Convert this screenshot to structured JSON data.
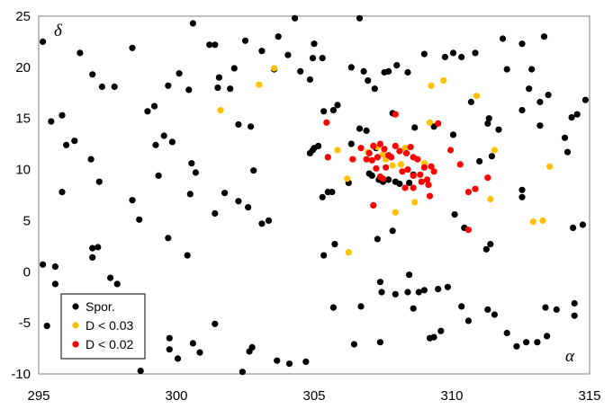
{
  "chart_data": {
    "type": "scatter",
    "xlabel": "α",
    "ylabel": "δ",
    "xlim": [
      295,
      315
    ],
    "ylim": [
      -10,
      25
    ],
    "xticks": [
      "295",
      "300",
      "305",
      "310",
      "315"
    ],
    "yticks": [
      "-10",
      "-5",
      "0",
      "5",
      "10",
      "15",
      "20",
      "25"
    ],
    "grid": false,
    "legend_position": "bottom-left",
    "series": [
      {
        "name": "Spor.",
        "color": "#000000",
        "points": [
          [
            295.15,
            22.5
          ],
          [
            295.45,
            14.7
          ],
          [
            295.85,
            15.3
          ],
          [
            296.0,
            12.4
          ],
          [
            296.3,
            12.8
          ],
          [
            296.5,
            21.4
          ],
          [
            296.95,
            19.3
          ],
          [
            297.3,
            18.1
          ],
          [
            297.75,
            18.1
          ],
          [
            298.4,
            21.9
          ],
          [
            298.95,
            15.7
          ],
          [
            299.2,
            16.2
          ],
          [
            299.55,
            13.3
          ],
          [
            299.25,
            12.4
          ],
          [
            299.85,
            12.7
          ],
          [
            299.7,
            18.2
          ],
          [
            300.1,
            19.4
          ],
          [
            300.45,
            17.8
          ],
          [
            300.6,
            24.3
          ],
          [
            301.2,
            22.2
          ],
          [
            301.4,
            22.2
          ],
          [
            301.55,
            19.0
          ],
          [
            301.5,
            18.0
          ],
          [
            301.95,
            17.9
          ],
          [
            302.1,
            19.9
          ],
          [
            302.25,
            14.4
          ],
          [
            302.5,
            22.6
          ],
          [
            303.1,
            21.6
          ],
          [
            302.7,
            14.2
          ],
          [
            303.55,
            19.8
          ],
          [
            303.7,
            23.0
          ],
          [
            304.05,
            21.2
          ],
          [
            304.3,
            24.8
          ],
          [
            304.5,
            19.6
          ],
          [
            304.95,
            20.9
          ],
          [
            305.0,
            22.3
          ],
          [
            304.85,
            18.8
          ],
          [
            305.3,
            20.9
          ],
          [
            305.35,
            15.7
          ],
          [
            305.7,
            15.8
          ],
          [
            305.85,
            16.3
          ],
          [
            306.35,
            20.0
          ],
          [
            306.65,
            24.8
          ],
          [
            306.8,
            19.6
          ],
          [
            306.95,
            18.7
          ],
          [
            307.2,
            17.9
          ],
          [
            307.55,
            19.5
          ],
          [
            307.7,
            19.6
          ],
          [
            308.0,
            20.2
          ],
          [
            308.4,
            19.5
          ],
          [
            309.0,
            21.3
          ],
          [
            309.75,
            21.0
          ],
          [
            310.05,
            21.4
          ],
          [
            310.35,
            21.0
          ],
          [
            310.7,
            16.6
          ],
          [
            310.85,
            21.4
          ],
          [
            311.3,
            14.5
          ],
          [
            311.35,
            15.0
          ],
          [
            311.7,
            13.9
          ],
          [
            311.45,
            11.3
          ],
          [
            311.85,
            22.8
          ],
          [
            312.0,
            19.8
          ],
          [
            312.55,
            22.3
          ],
          [
            312.8,
            17.9
          ],
          [
            312.9,
            19.8
          ],
          [
            313.2,
            14.3
          ],
          [
            313.2,
            16.6
          ],
          [
            313.35,
            23.0
          ],
          [
            313.5,
            17.3
          ],
          [
            312.55,
            15.8
          ],
          [
            314.1,
            13.1
          ],
          [
            314.2,
            11.7
          ],
          [
            314.35,
            15.1
          ],
          [
            314.55,
            15.4
          ],
          [
            314.85,
            16.8
          ],
          [
            295.85,
            7.8
          ],
          [
            296.9,
            11.0
          ],
          [
            297.2,
            8.8
          ],
          [
            298.4,
            7.0
          ],
          [
            298.65,
            5.1
          ],
          [
            299.35,
            9.4
          ],
          [
            299.7,
            3.3
          ],
          [
            300.5,
            7.6
          ],
          [
            300.55,
            10.6
          ],
          [
            300.7,
            9.7
          ],
          [
            301.4,
            5.7
          ],
          [
            301.75,
            7.7
          ],
          [
            302.25,
            6.9
          ],
          [
            302.6,
            6.3
          ],
          [
            302.8,
            9.9
          ],
          [
            303.1,
            4.7
          ],
          [
            303.35,
            5.0
          ],
          [
            304.85,
            11.6
          ],
          [
            304.95,
            11.9
          ],
          [
            305.0,
            12.1
          ],
          [
            305.15,
            12.3
          ],
          [
            305.3,
            7.3
          ],
          [
            305.5,
            7.8
          ],
          [
            305.65,
            7.8
          ],
          [
            306.25,
            8.7
          ],
          [
            306.35,
            12.5
          ],
          [
            306.65,
            14.0
          ],
          [
            306.9,
            13.8
          ],
          [
            307.0,
            9.6
          ],
          [
            307.1,
            9.4
          ],
          [
            307.35,
            9.0
          ],
          [
            307.5,
            8.8
          ],
          [
            307.7,
            9.0
          ],
          [
            307.95,
            8.8
          ],
          [
            308.1,
            8.6
          ],
          [
            308.45,
            8.7
          ],
          [
            308.6,
            9.5
          ],
          [
            307.25,
            12.1
          ],
          [
            307.85,
            15.5
          ],
          [
            308.65,
            14.1
          ],
          [
            309.35,
            14.2
          ],
          [
            310.05,
            13.4
          ],
          [
            311.0,
            10.8
          ],
          [
            305.35,
            1.6
          ],
          [
            305.75,
            2.7
          ],
          [
            307.3,
            3.2
          ],
          [
            307.85,
            4.0
          ],
          [
            308.45,
            -0.3
          ],
          [
            310.1,
            5.6
          ],
          [
            310.45,
            4.3
          ],
          [
            311.25,
            2.2
          ],
          [
            311.4,
            2.7
          ],
          [
            312.55,
            7.3
          ],
          [
            312.55,
            8.0
          ],
          [
            314.4,
            4.3
          ],
          [
            314.75,
            4.6
          ],
          [
            300.4,
            1.6
          ],
          [
            295.15,
            0.7
          ],
          [
            295.6,
            0.5
          ],
          [
            295.6,
            -1.2
          ],
          [
            295.3,
            -5.3
          ],
          [
            296.95,
            1.4
          ],
          [
            296.95,
            2.3
          ],
          [
            297.15,
            2.4
          ],
          [
            297.6,
            -0.6
          ],
          [
            297.85,
            -1.2
          ],
          [
            298.5,
            -3.6
          ],
          [
            299.75,
            -6.5
          ],
          [
            299.75,
            -7.6
          ],
          [
            300.05,
            -8.5
          ],
          [
            300.6,
            -7.0
          ],
          [
            300.85,
            -7.9
          ],
          [
            301.4,
            -5.1
          ],
          [
            302.4,
            -9.8
          ],
          [
            302.65,
            -7.8
          ],
          [
            302.75,
            -7.4
          ],
          [
            303.65,
            -8.7
          ],
          [
            304.1,
            -9.0
          ],
          [
            304.7,
            -8.8
          ],
          [
            305.7,
            -3.5
          ],
          [
            306.7,
            -3.4
          ],
          [
            306.45,
            -7.1
          ],
          [
            307.4,
            -1.0
          ],
          [
            307.45,
            -2.0
          ],
          [
            307.4,
            -6.9
          ],
          [
            307.95,
            -2.2
          ],
          [
            308.4,
            -2.0
          ],
          [
            308.6,
            -3.6
          ],
          [
            308.8,
            -2.0
          ],
          [
            309.0,
            -1.8
          ],
          [
            309.5,
            -1.7
          ],
          [
            309.2,
            -6.5
          ],
          [
            309.35,
            -6.4
          ],
          [
            309.6,
            -5.8
          ],
          [
            309.85,
            -1.5
          ],
          [
            310.35,
            -3.4
          ],
          [
            310.6,
            -4.8
          ],
          [
            311.3,
            -3.7
          ],
          [
            311.55,
            -4.2
          ],
          [
            312.0,
            -6.0
          ],
          [
            312.35,
            -7.3
          ],
          [
            312.7,
            -6.9
          ],
          [
            313.1,
            -6.9
          ],
          [
            313.45,
            -6.3
          ],
          [
            313.4,
            -3.5
          ],
          [
            313.8,
            -3.7
          ],
          [
            314.45,
            -3.1
          ],
          [
            314.45,
            -4.3
          ],
          [
            298.7,
            -9.7
          ]
        ]
      },
      {
        "name": "D < 0.03",
        "color": "#FFC000",
        "points": [
          [
            303.0,
            18.3
          ],
          [
            303.55,
            19.9
          ],
          [
            301.6,
            15.8
          ],
          [
            305.85,
            11.9
          ],
          [
            306.2,
            9.1
          ],
          [
            306.25,
            1.9
          ],
          [
            306.95,
            11.7
          ],
          [
            307.3,
            12.2
          ],
          [
            307.5,
            11.5
          ],
          [
            307.6,
            11.0
          ],
          [
            307.85,
            10.4
          ],
          [
            308.15,
            10.5
          ],
          [
            308.3,
            12.1
          ],
          [
            308.65,
            6.8
          ],
          [
            307.95,
            5.8
          ],
          [
            309.0,
            10.6
          ],
          [
            309.25,
            18.2
          ],
          [
            309.7,
            18.7
          ],
          [
            309.2,
            14.6
          ],
          [
            310.9,
            17.2
          ],
          [
            311.4,
            7.1
          ],
          [
            311.55,
            11.9
          ],
          [
            312.95,
            4.9
          ],
          [
            313.3,
            5.0
          ],
          [
            313.55,
            10.3
          ]
        ]
      },
      {
        "name": "D < 0.02",
        "color": "#FF0000",
        "points": [
          [
            305.45,
            14.6
          ],
          [
            305.5,
            11.2
          ],
          [
            306.4,
            11.0
          ],
          [
            306.7,
            12.1
          ],
          [
            306.9,
            11.0
          ],
          [
            307.0,
            11.6
          ],
          [
            307.15,
            12.3
          ],
          [
            307.3,
            11.2
          ],
          [
            307.4,
            12.5
          ],
          [
            307.55,
            12.0
          ],
          [
            307.7,
            11.4
          ],
          [
            307.8,
            11.2
          ],
          [
            307.95,
            12.3
          ],
          [
            308.1,
            11.8
          ],
          [
            308.35,
            11.6
          ],
          [
            308.5,
            12.2
          ],
          [
            308.6,
            11.2
          ],
          [
            308.75,
            11.0
          ],
          [
            307.1,
            10.9
          ],
          [
            307.25,
            10.1
          ],
          [
            307.4,
            9.3
          ],
          [
            307.6,
            10.2
          ],
          [
            308.2,
            9.8
          ],
          [
            308.4,
            10.0
          ],
          [
            308.6,
            9.4
          ],
          [
            308.85,
            9.5
          ],
          [
            309.0,
            10.2
          ],
          [
            309.25,
            10.3
          ],
          [
            309.1,
            9.0
          ],
          [
            309.35,
            9.8
          ],
          [
            308.3,
            8.2
          ],
          [
            308.6,
            8.2
          ],
          [
            308.9,
            8.8
          ],
          [
            309.15,
            8.5
          ],
          [
            309.2,
            7.4
          ],
          [
            307.15,
            6.5
          ],
          [
            307.5,
            9.1
          ],
          [
            307.95,
            15.4
          ],
          [
            309.5,
            14.5
          ],
          [
            309.95,
            11.9
          ],
          [
            310.3,
            10.5
          ],
          [
            310.6,
            7.8
          ],
          [
            310.85,
            8.1
          ],
          [
            310.6,
            4.1
          ],
          [
            311.3,
            9.2
          ]
        ]
      }
    ]
  }
}
